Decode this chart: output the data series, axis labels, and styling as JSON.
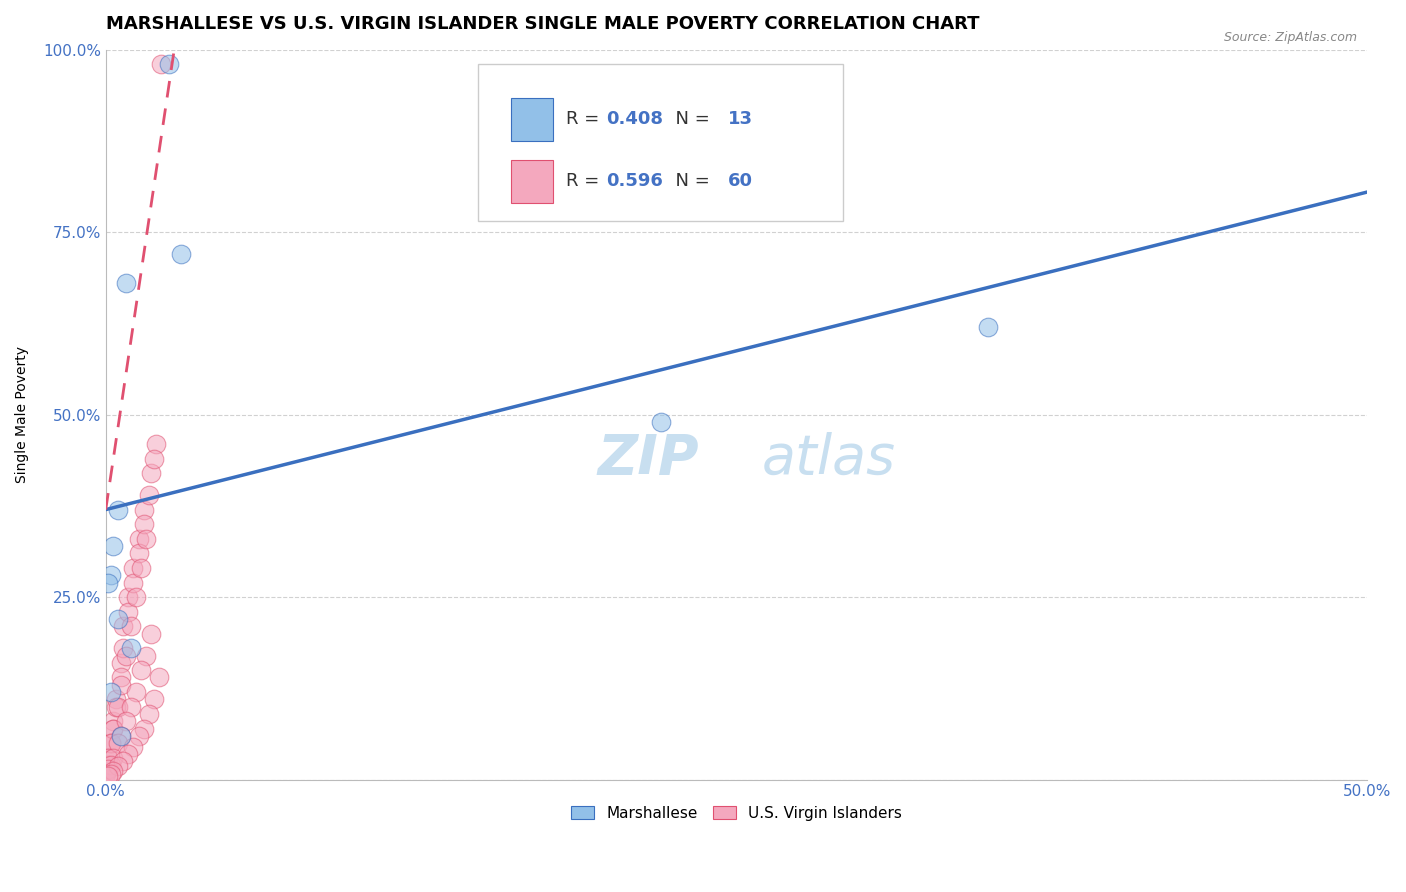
{
  "title": "MARSHALLESE VS U.S. VIRGIN ISLANDER SINGLE MALE POVERTY CORRELATION CHART",
  "source": "Source: ZipAtlas.com",
  "ylabel": "Single Male Poverty",
  "xlim": [
    0.0,
    0.5
  ],
  "ylim": [
    0.0,
    1.0
  ],
  "xtick_vals": [
    0.0,
    0.1,
    0.2,
    0.3,
    0.4,
    0.5
  ],
  "xtick_labels": [
    "0.0%",
    "",
    "",
    "",
    "",
    "50.0%"
  ],
  "ytick_vals": [
    0.0,
    0.25,
    0.5,
    0.75,
    1.0
  ],
  "ytick_labels": [
    "",
    "25.0%",
    "50.0%",
    "75.0%",
    "100.0%"
  ],
  "blue_R": "0.408",
  "blue_N": "13",
  "pink_R": "0.596",
  "pink_N": "60",
  "blue_color": "#92C0E8",
  "pink_color": "#F4A8BE",
  "blue_line_color": "#3A6FBF",
  "pink_line_color": "#E05070",
  "legend_label_blue": "Marshallese",
  "legend_label_pink": "U.S. Virgin Islanders",
  "blue_scatter_x": [
    0.025,
    0.03,
    0.008,
    0.005,
    0.003,
    0.002,
    0.001,
    0.005,
    0.01,
    0.002,
    0.35,
    0.22,
    0.006
  ],
  "blue_scatter_y": [
    0.98,
    0.72,
    0.68,
    0.37,
    0.32,
    0.28,
    0.27,
    0.22,
    0.18,
    0.12,
    0.62,
    0.49,
    0.06
  ],
  "pink_scatter_x": [
    0.022,
    0.02,
    0.018,
    0.015,
    0.013,
    0.011,
    0.009,
    0.007,
    0.006,
    0.004,
    0.003,
    0.002,
    0.019,
    0.017,
    0.015,
    0.013,
    0.011,
    0.009,
    0.007,
    0.006,
    0.004,
    0.003,
    0.002,
    0.001,
    0.016,
    0.014,
    0.012,
    0.01,
    0.008,
    0.006,
    0.005,
    0.003,
    0.002,
    0.001,
    0.001,
    0.0,
    0.018,
    0.016,
    0.014,
    0.012,
    0.01,
    0.008,
    0.006,
    0.005,
    0.003,
    0.002,
    0.001,
    0.0,
    0.021,
    0.019,
    0.017,
    0.015,
    0.013,
    0.011,
    0.009,
    0.007,
    0.005,
    0.003,
    0.002,
    0.001
  ],
  "pink_scatter_y": [
    0.98,
    0.46,
    0.42,
    0.37,
    0.33,
    0.29,
    0.25,
    0.21,
    0.16,
    0.11,
    0.08,
    0.05,
    0.44,
    0.39,
    0.35,
    0.31,
    0.27,
    0.23,
    0.18,
    0.14,
    0.1,
    0.07,
    0.05,
    0.03,
    0.33,
    0.29,
    0.25,
    0.21,
    0.17,
    0.13,
    0.1,
    0.07,
    0.05,
    0.03,
    0.02,
    0.01,
    0.2,
    0.17,
    0.15,
    0.12,
    0.1,
    0.08,
    0.06,
    0.05,
    0.03,
    0.02,
    0.015,
    0.008,
    0.14,
    0.11,
    0.09,
    0.07,
    0.06,
    0.045,
    0.035,
    0.025,
    0.018,
    0.012,
    0.008,
    0.005
  ],
  "blue_line_x": [
    0.0,
    0.5
  ],
  "blue_line_y": [
    0.37,
    0.805
  ],
  "pink_line_x": [
    0.0,
    0.028
  ],
  "pink_line_y": [
    0.37,
    1.02
  ],
  "grid_color": "#CCCCCC",
  "bg_color": "#FFFFFF",
  "title_fontsize": 13,
  "axis_label_fontsize": 10,
  "tick_fontsize": 11,
  "legend_fontsize": 13,
  "watermark_fontsize": 40,
  "watermark_color": "#C8DFF0",
  "axis_color": "#4472C4",
  "text_color": "#333333"
}
